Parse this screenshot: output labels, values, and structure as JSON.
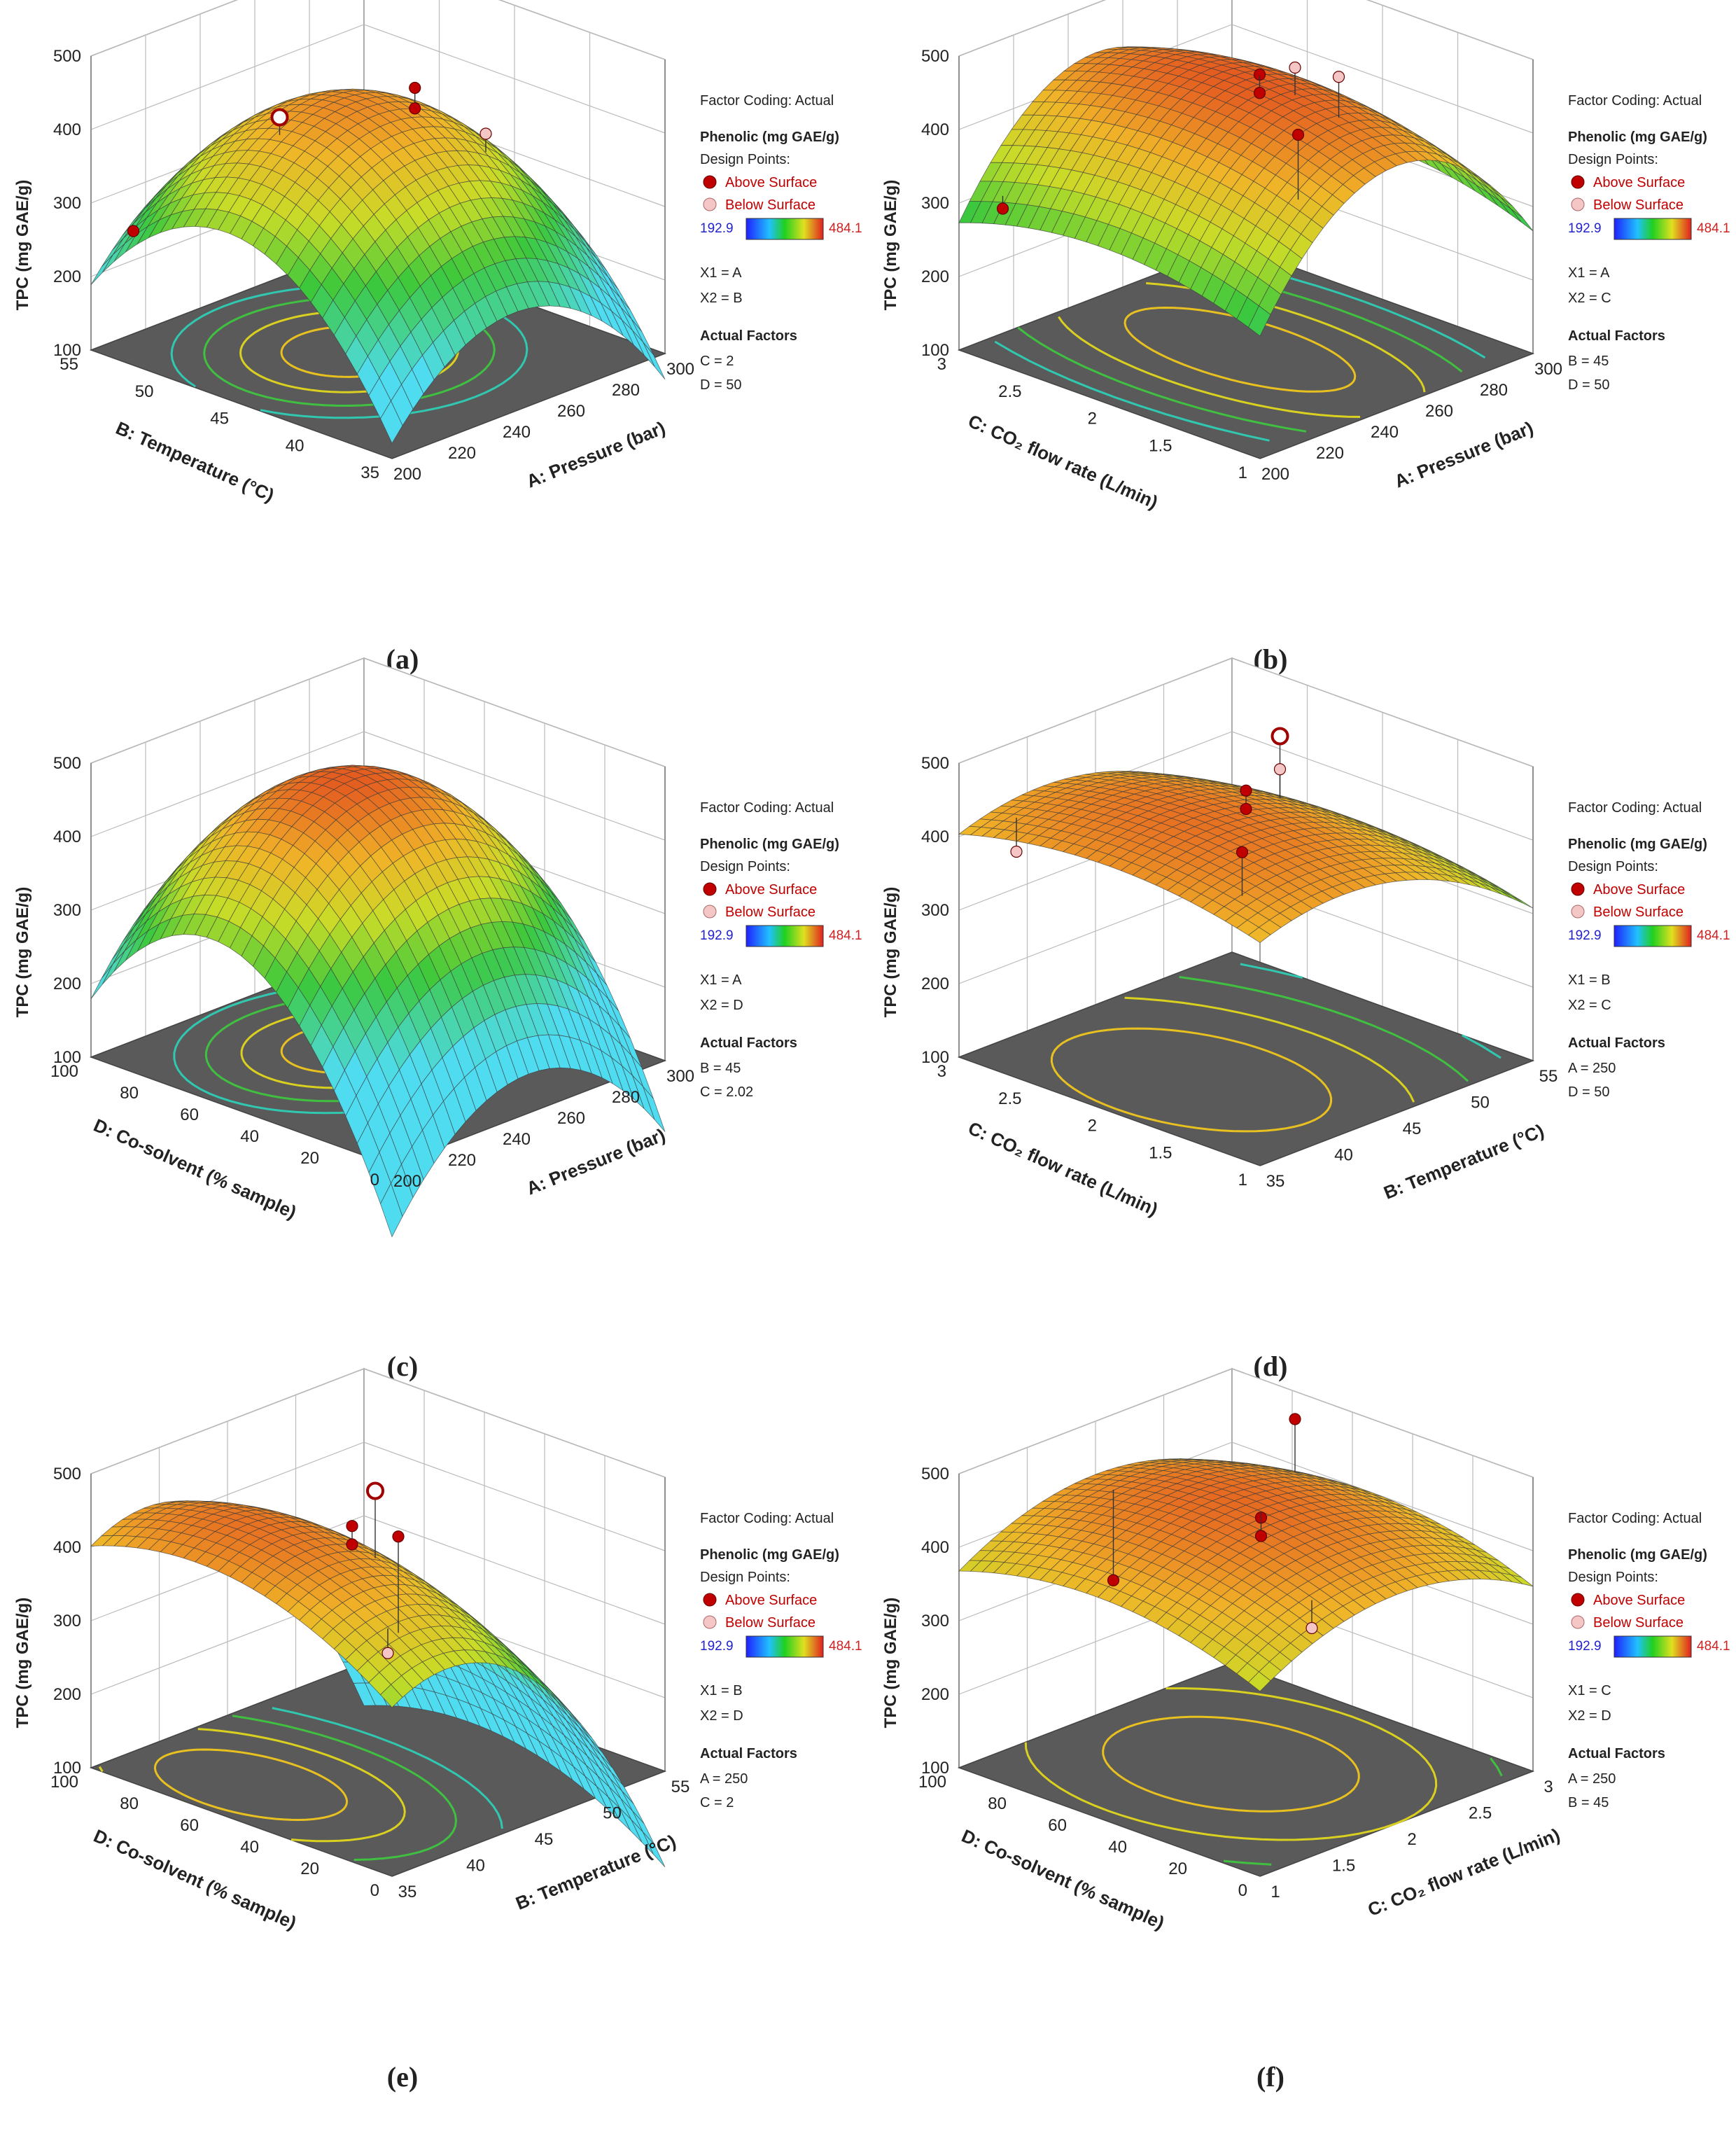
{
  "figure": {
    "common": {
      "z_label": "TPC (mg GAE/g)",
      "z_ticks": [
        100,
        200,
        300,
        400,
        500
      ],
      "z_range": [
        100,
        500
      ],
      "factor_coding": "Factor Coding: Actual",
      "response": "Phenolic (mg GAE/g)",
      "design_points": "Design Points:",
      "above_label": "Above Surface",
      "below_label": "Below Surface",
      "color_min": "192.9",
      "color_max": "484.1",
      "actual_factors": "Actual Factors"
    },
    "colors": {
      "above_point": "#c00000",
      "below_point": "#f4c6c6",
      "floor": "#5a5a5a",
      "cmin_text": "#2222cc",
      "cmax_text": "#cc2222"
    }
  },
  "chart_data": [
    {
      "panel": "(a)",
      "type": "surface3d",
      "x_label": "A: Pressure (bar)",
      "x_ticks": [
        "200",
        "220",
        "240",
        "260",
        "280",
        "300"
      ],
      "x_range": [
        200,
        300
      ],
      "y_label": "B: Temperature (°C)",
      "y_ticks": [
        "35",
        "40",
        "45",
        "50",
        "55"
      ],
      "y_range": [
        35,
        55
      ],
      "x1": "X1 = A",
      "x2": "X2 = B",
      "fixed": [
        "C = 2",
        "D = 50"
      ],
      "peak": [
        0.45,
        0.55
      ],
      "z_peak": 440,
      "cx": 140,
      "cy": 170,
      "cxy": 0,
      "points": [
        {
          "x": 225,
          "y": 43,
          "z": 440,
          "type": "above",
          "ring": true
        },
        {
          "x": 258,
          "y": 46,
          "z": 455,
          "type": "above"
        },
        {
          "x": 258,
          "y": 46,
          "z": 427,
          "type": "above"
        },
        {
          "x": 295,
          "y": 44,
          "z": 325,
          "type": "below"
        },
        {
          "x": 210,
          "y": 36,
          "z": 255,
          "type": "above"
        }
      ]
    },
    {
      "panel": "(b)",
      "type": "surface3d",
      "x_label": "A: Pressure (bar)",
      "x_ticks": [
        "200",
        "220",
        "240",
        "260",
        "280",
        "300"
      ],
      "x_range": [
        200,
        300
      ],
      "y_label": "C: CO₂ flow rate (L/min)",
      "y_ticks": [
        "1",
        "1.5",
        "2",
        "2.5",
        "3"
      ],
      "y_range": [
        1,
        3
      ],
      "x1": "X1 = A",
      "x2": "X2 = C",
      "fixed": [
        "B = 45",
        "D = 50"
      ],
      "peak": [
        0.5,
        0.52
      ],
      "z_peak": 470,
      "cx": 160,
      "cy": 40,
      "cxy": 0,
      "points": [
        {
          "x": 225,
          "y": 2.8,
          "z": 490,
          "type": "above"
        },
        {
          "x": 255,
          "y": 2.0,
          "z": 470,
          "type": "above"
        },
        {
          "x": 255,
          "y": 2.0,
          "z": 445,
          "type": "above"
        },
        {
          "x": 290,
          "y": 1.6,
          "z": 400,
          "type": "below"
        },
        {
          "x": 295,
          "y": 1.8,
          "z": 395,
          "type": "below"
        },
        {
          "x": 205,
          "y": 1.2,
          "z": 300,
          "type": "above"
        }
      ]
    },
    {
      "panel": "(c)",
      "type": "surface3d",
      "x_label": "A: Pressure (bar)",
      "x_ticks": [
        "200",
        "220",
        "240",
        "260",
        "280",
        "300"
      ],
      "x_range": [
        200,
        300
      ],
      "y_label": "D: Co-solvent (% sample)",
      "y_ticks": [
        "0",
        "20",
        "40",
        "60",
        "80",
        "100"
      ],
      "y_range": [
        0,
        100
      ],
      "x1": "X1 = A",
      "x2": "X2 = D",
      "fixed": [
        "B = 45",
        "C = 2.02"
      ],
      "peak": [
        0.5,
        0.6
      ],
      "z_peak": 470,
      "cx": 150,
      "cy": 220,
      "cxy": 0,
      "points": []
    },
    {
      "panel": "(d)",
      "type": "surface3d",
      "x_label": "B: Temperature (°C)",
      "x_ticks": [
        "35",
        "40",
        "45",
        "50",
        "55"
      ],
      "x_range": [
        35,
        55
      ],
      "y_label": "C: CO₂ flow rate (L/min)",
      "y_ticks": [
        "1",
        "1.5",
        "2",
        "2.5",
        "3"
      ],
      "y_range": [
        1,
        3
      ],
      "x1": "X1 = B",
      "x2": "X2 = C",
      "fixed": [
        "A = 250",
        "D = 50"
      ],
      "peak": [
        0.3,
        0.5
      ],
      "z_peak": 455,
      "cx": 60,
      "cy": 30,
      "cxy": 70,
      "points": [
        {
          "x": 37,
          "y": 2.7,
          "z": 490,
          "type": "above"
        },
        {
          "x": 45,
          "y": 2.0,
          "z": 465,
          "type": "above"
        },
        {
          "x": 45,
          "y": 2.0,
          "z": 440,
          "type": "above"
        },
        {
          "x": 53,
          "y": 1.5,
          "z": 445,
          "type": "above",
          "ring": true
        },
        {
          "x": 53,
          "y": 1.5,
          "z": 400,
          "type": "below"
        },
        {
          "x": 37,
          "y": 1.2,
          "z": 380,
          "type": "below"
        }
      ]
    },
    {
      "panel": "(e)",
      "type": "surface3d",
      "x_label": "B: Temperature (°C)",
      "x_ticks": [
        "35",
        "40",
        "45",
        "50",
        "55"
      ],
      "x_range": [
        35,
        55
      ],
      "y_label": "D: Co-solvent (% sample)",
      "y_ticks": [
        "0",
        "20",
        "40",
        "60",
        "80",
        "100"
      ],
      "y_range": [
        0,
        100
      ],
      "x1": "X1 = B",
      "x2": "X2 = D",
      "fixed": [
        "A = 250",
        "C = 2"
      ],
      "peak": [
        0.2,
        0.65
      ],
      "z_peak": 455,
      "cx": 150,
      "cy": 60,
      "cxy": 0,
      "points": [
        {
          "x": 42,
          "y": 55,
          "z": 460,
          "type": "above"
        },
        {
          "x": 42,
          "y": 55,
          "z": 435,
          "type": "above"
        },
        {
          "x": 47,
          "y": 40,
          "z": 450,
          "type": "above",
          "ring": true
        },
        {
          "x": 52,
          "y": 25,
          "z": 330,
          "type": "above"
        },
        {
          "x": 38,
          "y": 85,
          "z": 360,
          "type": "below"
        }
      ]
    },
    {
      "panel": "(f)",
      "type": "surface3d",
      "x_label": "C: CO₂ flow rate (L/min)",
      "x_ticks": [
        "1",
        "1.5",
        "2",
        "2.5",
        "3"
      ],
      "x_range": [
        1,
        3
      ],
      "y_label": "D: Co-solvent (% sample)",
      "y_ticks": [
        "0",
        "20",
        "40",
        "60",
        "80",
        "100"
      ],
      "y_range": [
        0,
        100
      ],
      "x1": "X1 = C",
      "x2": "X2 = D",
      "fixed": [
        "A = 250",
        "B = 45"
      ],
      "peak": [
        0.5,
        0.55
      ],
      "z_peak": 460,
      "cx": 60,
      "cy": 40,
      "cxy": 60,
      "points": [
        {
          "x": 2.8,
          "y": 30,
          "z": 490,
          "type": "above"
        },
        {
          "x": 2.0,
          "y": 55,
          "z": 450,
          "type": "above"
        },
        {
          "x": 2.0,
          "y": 55,
          "z": 425,
          "type": "above"
        },
        {
          "x": 1.6,
          "y": 90,
          "z": 380,
          "type": "below"
        },
        {
          "x": 1.8,
          "y": 15,
          "z": 320,
          "type": "above"
        }
      ]
    }
  ]
}
